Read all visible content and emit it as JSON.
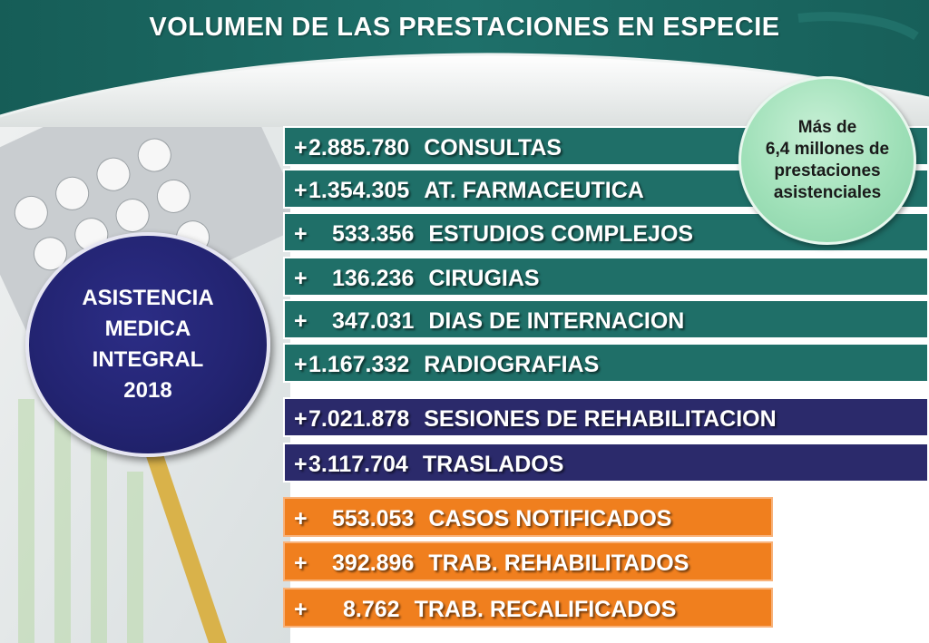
{
  "title": "VOLUMEN DE LAS PRESTACIONES EN ESPECIE",
  "left_circle": [
    "ASISTENCIA",
    "MEDICA",
    "INTEGRAL",
    "2018"
  ],
  "right_circle": [
    "Más de",
    "6,4 millones de",
    "prestaciones",
    "asistenciales"
  ],
  "rows": [
    {
      "sign": "+",
      "value": "2.885.780",
      "label": "CONSULTAS",
      "color": "#1f6f68"
    },
    {
      "sign": "+",
      "value": "1.354.305",
      "label": "AT. FARMACEUTICA",
      "color": "#1f6f68"
    },
    {
      "sign": "+",
      "value": "533.356",
      "label": "ESTUDIOS COMPLEJOS",
      "color": "#1f6f68"
    },
    {
      "sign": "+",
      "value": "136.236",
      "label": "CIRUGIAS",
      "color": "#1f6f68"
    },
    {
      "sign": "+",
      "value": "347.031",
      "label": "DIAS DE INTERNACION",
      "color": "#1f6f68"
    },
    {
      "sign": "+",
      "value": "1.167.332",
      "label": "RADIOGRAFIAS",
      "color": "#1f6f68"
    },
    {
      "sign": "+",
      "value": "7.021.878",
      "label": "SESIONES DE REHABILITACION",
      "color": "#2b2a6b"
    },
    {
      "sign": "+",
      "value": "3.117.704",
      "label": "TRASLADOS",
      "color": "#2b2a6b"
    },
    {
      "sign": "+",
      "value": "553.053",
      "label": "CASOS NOTIFICADOS",
      "color": "#f07f1e"
    },
    {
      "sign": "+",
      "value": "392.896",
      "label": "TRAB. REHABILITADOS",
      "color": "#f07f1e"
    },
    {
      "sign": "+",
      "value": "8.762",
      "label": "TRAB. RECALIFICADOS",
      "color": "#f07f1e"
    }
  ],
  "colors": {
    "header_teal": "#1d6d66",
    "teal_row": "#1f6f68",
    "navy_row": "#2b2a6b",
    "orange_row": "#f07f1e",
    "navy_circle": "#232472",
    "green_circle": "#9fe0b8"
  }
}
